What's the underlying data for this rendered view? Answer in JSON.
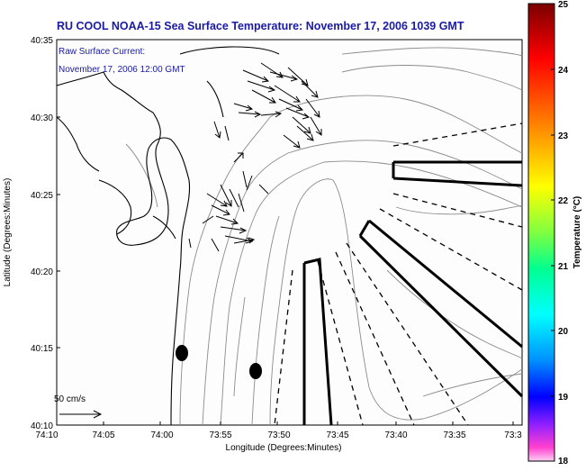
{
  "title": "RU COOL  NOAA-15  Sea Surface Temperature:  November 17, 2006 1039 GMT",
  "annotation": {
    "line1": "Raw Surface Current:",
    "line2": "November 17, 2006 12:00 GMT"
  },
  "axes": {
    "xlabel": "Longitude (Degrees:Minutes)",
    "ylabel": "Latitude (Degrees:Minutes)",
    "xticks": [
      "74:10",
      "74:05",
      "74:00",
      "73:55",
      "73:50",
      "73:45",
      "73:40",
      "73:35",
      "73:3"
    ],
    "yticks": [
      "40:35",
      "40:30",
      "40:25",
      "40:20",
      "40:15",
      "40:10"
    ]
  },
  "scale_vector": {
    "label": "50 cm/s"
  },
  "colorbar": {
    "label": "Temperature (°C)",
    "ticks": [
      "25",
      "24",
      "23",
      "22",
      "21",
      "20",
      "19",
      "18"
    ],
    "colors": [
      "#8b0000",
      "#ff0000",
      "#ff8000",
      "#ffff00",
      "#9acd32",
      "#00ff7f",
      "#00ffff",
      "#00a0ff",
      "#0000ff",
      "#8000ff",
      "#ff40c0",
      "#ffc0f0"
    ]
  },
  "colors": {
    "title": "#1a1aa6",
    "annotation": "#1a1aa6",
    "contour": "#8c8c8c",
    "coast": "#000000"
  }
}
